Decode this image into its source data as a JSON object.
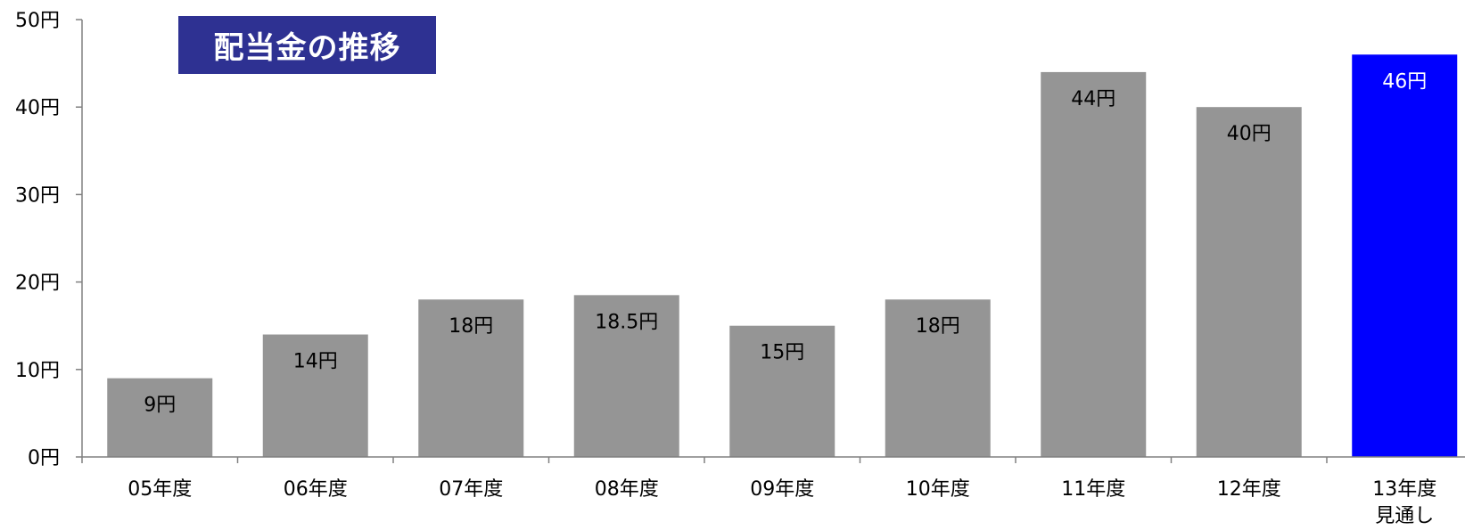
{
  "chart_data": {
    "type": "bar",
    "title": "配当金の推移",
    "xlabel": "",
    "ylabel": "",
    "ylim": [
      0,
      50
    ],
    "y_ticks": [
      0,
      10,
      20,
      30,
      40,
      50
    ],
    "y_tick_labels": [
      "0円",
      "10円",
      "20円",
      "30円",
      "40円",
      "50円"
    ],
    "categories": [
      "05年度",
      "06年度",
      "07年度",
      "08年度",
      "09年度",
      "10年度",
      "11年度",
      "12年度",
      "13年度\n見通し"
    ],
    "values": [
      9,
      14,
      18,
      18.5,
      15,
      18,
      44,
      40,
      46
    ],
    "data_labels": [
      "9円",
      "14円",
      "18円",
      "18.5円",
      "15円",
      "18円",
      "44円",
      "40円",
      "46円"
    ],
    "highlight_index": 8,
    "grid": false,
    "colors": {
      "bar": "#959595",
      "highlight": "#0000ff",
      "title_bg": "#2e3192",
      "axis": "#808080",
      "label": "#000000",
      "highlight_label": "#ffffff"
    }
  }
}
